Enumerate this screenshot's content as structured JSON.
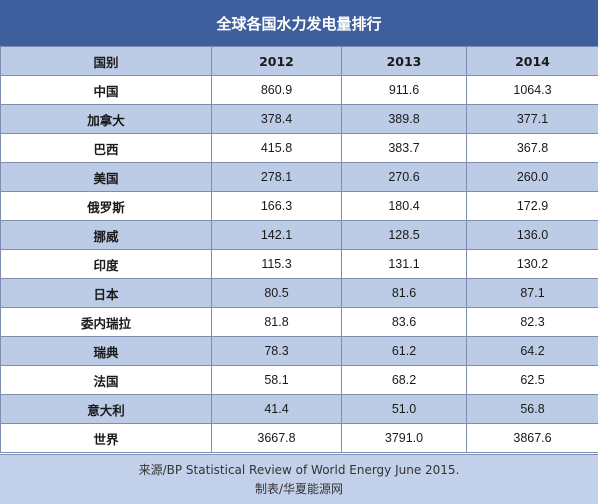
{
  "title": "全球各国水力发电量排行",
  "header": [
    "国别",
    "2012",
    "2013",
    "2014"
  ],
  "chart_data": {
    "type": "table",
    "title": "全球各国水力发电量排行",
    "columns": [
      "国别",
      "2012",
      "2013",
      "2014"
    ],
    "rows": [
      [
        "中国",
        "860.9",
        "911.6",
        "1064.3"
      ],
      [
        "加拿大",
        "378.4",
        "389.8",
        "377.1"
      ],
      [
        "巴西",
        "415.8",
        "383.7",
        "367.8"
      ],
      [
        "美国",
        "278.1",
        "270.6",
        "260.0"
      ],
      [
        "俄罗斯",
        "166.3",
        "180.4",
        "172.9"
      ],
      [
        "挪威",
        "142.1",
        "128.5",
        "136.0"
      ],
      [
        "印度",
        "115.3",
        "131.1",
        "130.2"
      ],
      [
        "日本",
        "80.5",
        "81.6",
        "87.1"
      ],
      [
        "委内瑞拉",
        "81.8",
        "83.6",
        "82.3"
      ],
      [
        "瑞典",
        "78.3",
        "61.2",
        "64.2"
      ],
      [
        "法国",
        "58.1",
        "68.2",
        "62.5"
      ],
      [
        "意大利",
        "41.4",
        "51.0",
        "56.8"
      ],
      [
        "世界",
        "3667.8",
        "3791.0",
        "3867.6"
      ]
    ]
  },
  "footer": {
    "source": "来源/BP Statistical Review of World Energy June 2015.",
    "credit": "制表/华夏能源网"
  },
  "colors": {
    "title_bg": "#3d5f9e",
    "stripe": "#bccbe6",
    "border": "#7f8eb0"
  }
}
